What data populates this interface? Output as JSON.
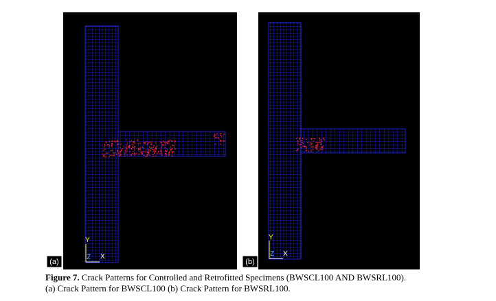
{
  "figure": {
    "label": "Figure 7.",
    "caption_line1": "Crack Patterns for Controlled and Retrofitted Specimens (BWSCL100 AND BWSRL100).",
    "caption_line2": "(a) Crack Pattern for BWSCL100 (b) Crack Pattern for BWSRL100."
  },
  "panels": [
    {
      "label": "(a)",
      "axes": {
        "y": "Y",
        "z": "Z",
        "x": "X"
      }
    },
    {
      "label": "(b)",
      "axes": {
        "y": "Y",
        "z": "Z",
        "x": "X"
      }
    }
  ]
}
